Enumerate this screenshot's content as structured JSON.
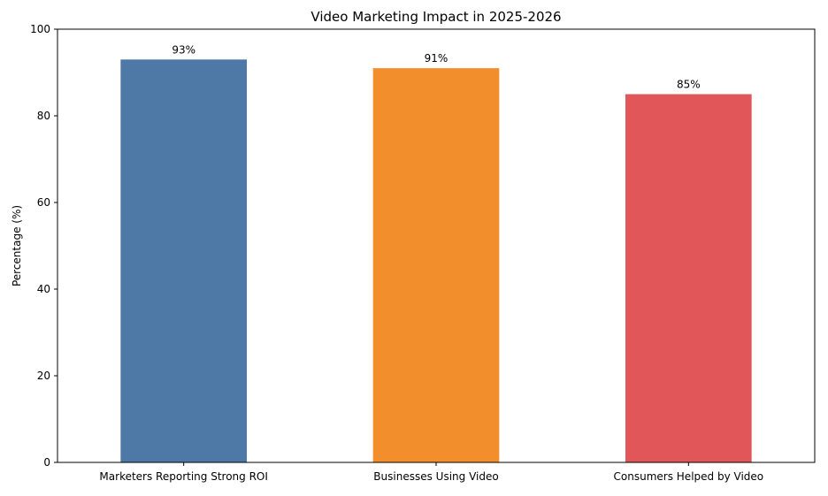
{
  "chart_data": {
    "type": "bar",
    "title": "Video Marketing Impact in 2025-2026",
    "xlabel": "",
    "ylabel": "Percentage (%)",
    "categories": [
      "Marketers Reporting Strong ROI",
      "Businesses Using Video",
      "Consumers Helped by Video"
    ],
    "values": [
      93,
      91,
      85
    ],
    "data_labels": [
      "93%",
      "91%",
      "85%"
    ],
    "colors": [
      "#4e79a7",
      "#f28e2b",
      "#e15759"
    ],
    "ylim": [
      0,
      100
    ],
    "yticks": [
      0,
      20,
      40,
      60,
      80,
      100
    ],
    "grid": false,
    "legend": "none"
  }
}
